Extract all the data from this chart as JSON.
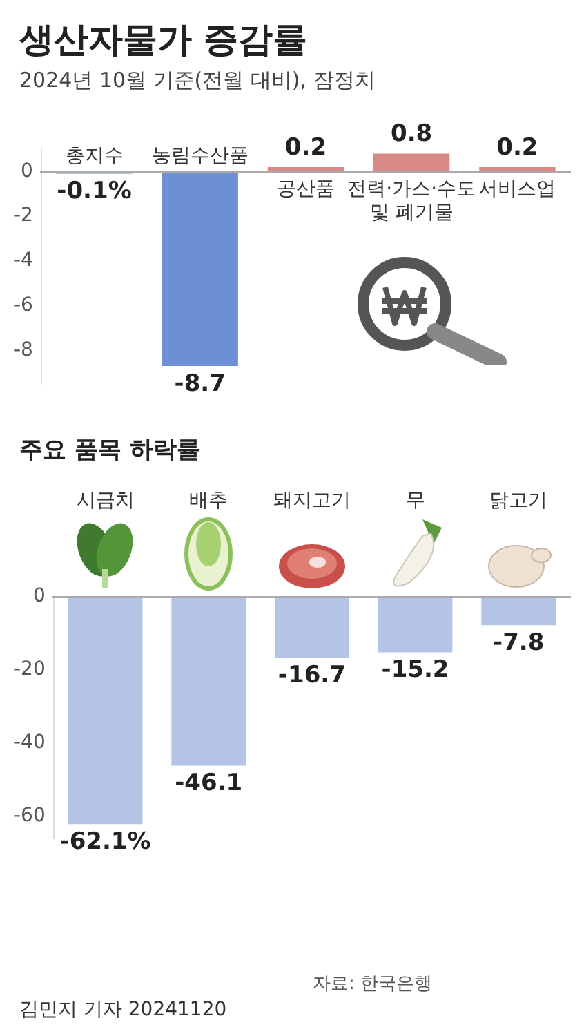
{
  "chart_data": [
    {
      "type": "bar",
      "title": "생산자물가 증감률",
      "subtitle": "2024년 10월 기준(전월 대비), 잠정치",
      "categories": [
        "총지수",
        "농림수산품",
        "공산품",
        "전력·가스·수도 및 폐기물",
        "서비스업"
      ],
      "values": [
        -0.1,
        -8.7,
        0.2,
        0.8,
        0.2
      ],
      "colors": [
        "#6d8fd4",
        "#6d8fd4",
        "#d98985",
        "#d98985",
        "#d98985"
      ],
      "value_labels": [
        "-0.1%",
        "-8.7",
        "0.2",
        "0.8",
        "0.2"
      ],
      "ylim": [
        -9.5,
        1
      ],
      "yticks": [
        0,
        -2,
        -4,
        -6,
        -8
      ]
    },
    {
      "type": "bar",
      "title": "주요 품목 하락률",
      "categories": [
        "시금치",
        "배추",
        "돼지고기",
        "무",
        "닭고기"
      ],
      "values": [
        -62.1,
        -46.1,
        -16.7,
        -15.2,
        -7.8
      ],
      "color": "#b4c3e6",
      "value_labels": [
        "-62.1%",
        "-46.1",
        "-16.7",
        "-15.2",
        "-7.8"
      ],
      "ylim": [
        -66,
        0
      ],
      "yticks": [
        0,
        -20,
        -40,
        -60
      ],
      "annotations": [
        "자료: 한국은행",
        "김민지 기자 20241120"
      ]
    }
  ]
}
